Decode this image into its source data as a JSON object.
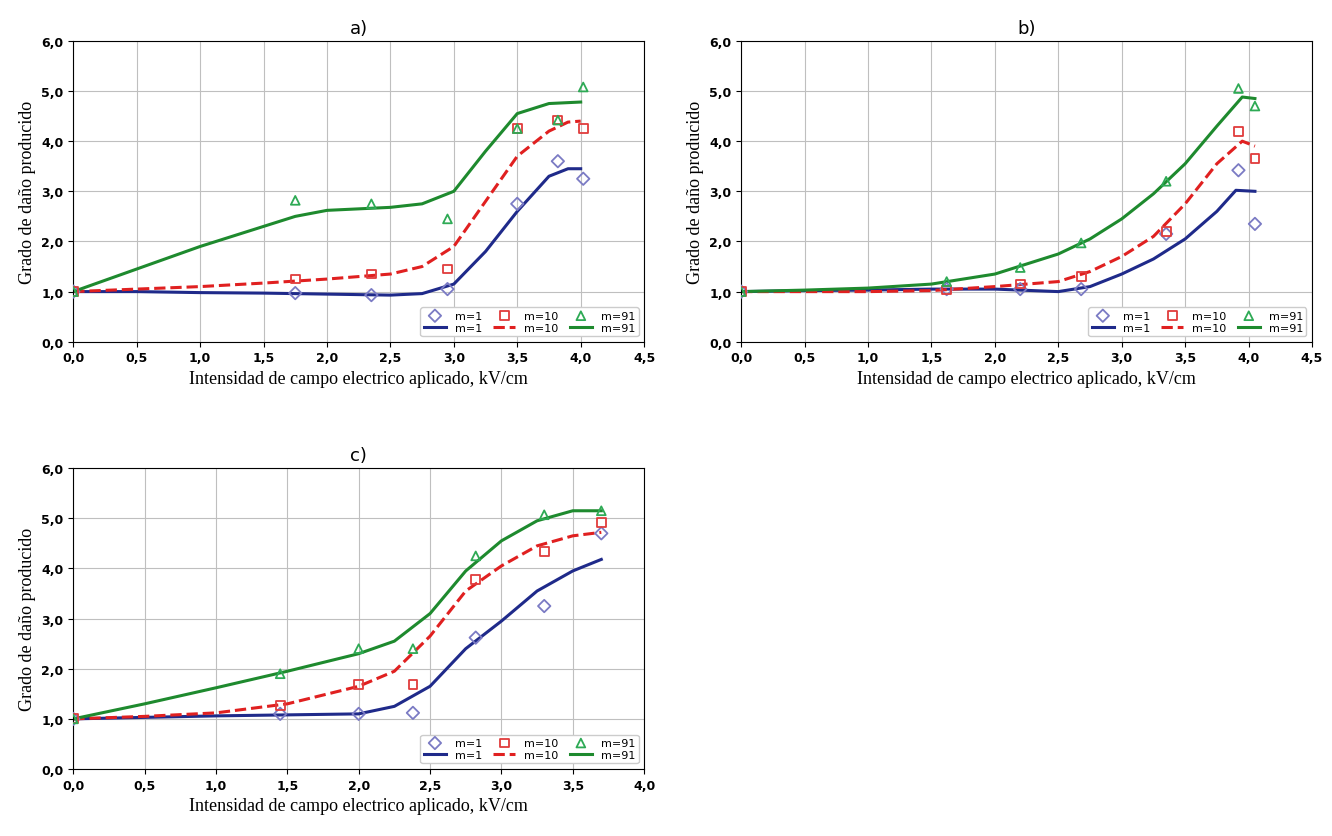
{
  "chart_data": [
    {
      "type": "line",
      "title": "a)",
      "x_label": "Intensidad de campo electrico aplicado, kV/cm",
      "y_label": "Grado de daño producido",
      "xlim": [
        0.0,
        4.5
      ],
      "xticks": [
        {
          "value": 0.0,
          "label": "0,0"
        },
        {
          "value": 0.5,
          "label": "0,5"
        },
        {
          "value": 1.0,
          "label": "1,0"
        },
        {
          "value": 1.5,
          "label": "1,5"
        },
        {
          "value": 2.0,
          "label": "2,0"
        },
        {
          "value": 2.5,
          "label": "2,5"
        },
        {
          "value": 3.0,
          "label": "3,0"
        },
        {
          "value": 3.5,
          "label": "3,5"
        },
        {
          "value": 4.0,
          "label": "4,0"
        },
        {
          "value": 4.5,
          "label": "4,5"
        }
      ],
      "ylim": [
        0.0,
        6.0
      ],
      "yticks": [
        {
          "value": 0.0,
          "label": "0,0"
        },
        {
          "value": 1.0,
          "label": "1,0"
        },
        {
          "value": 2.0,
          "label": "2,0"
        },
        {
          "value": 3.0,
          "label": "3,0"
        },
        {
          "value": 4.0,
          "label": "4,0"
        },
        {
          "value": 5.0,
          "label": "5,0"
        },
        {
          "value": 6.0,
          "label": "6,0"
        }
      ],
      "grid": true,
      "legend": "lower right",
      "series": [
        {
          "name": "m=1",
          "type": "scatter",
          "color": "#7b7bc4",
          "marker": "diamond",
          "x": [
            0.0,
            1.75,
            2.35,
            2.95,
            3.5,
            3.82,
            4.02
          ],
          "values": [
            1.0,
            0.97,
            0.93,
            1.05,
            2.75,
            3.6,
            3.25
          ]
        },
        {
          "name": "m=1",
          "type": "line",
          "color": "#1f2a8a",
          "line_style": "solid",
          "x": [
            0.0,
            0.5,
            1.0,
            1.5,
            2.0,
            2.5,
            2.75,
            3.0,
            3.25,
            3.5,
            3.75,
            3.9,
            4.0
          ],
          "values": [
            1.0,
            1.0,
            0.98,
            0.97,
            0.95,
            0.93,
            0.96,
            1.15,
            1.8,
            2.6,
            3.3,
            3.45,
            3.45
          ]
        },
        {
          "name": "m=10",
          "type": "scatter",
          "color": "#e03c3c",
          "marker": "square",
          "x": [
            0.0,
            1.75,
            2.35,
            2.95,
            3.5,
            3.82,
            4.02
          ],
          "values": [
            1.0,
            1.25,
            1.35,
            1.45,
            4.25,
            4.42,
            4.25
          ]
        },
        {
          "name": "m=10",
          "type": "line",
          "color": "#e02020",
          "line_style": "dashed",
          "x": [
            0.0,
            0.5,
            1.0,
            1.5,
            2.0,
            2.5,
            2.75,
            3.0,
            3.25,
            3.5,
            3.75,
            3.9,
            4.0
          ],
          "values": [
            1.0,
            1.05,
            1.1,
            1.17,
            1.25,
            1.35,
            1.5,
            1.9,
            2.8,
            3.7,
            4.2,
            4.38,
            4.4
          ]
        },
        {
          "name": "m=91",
          "type": "scatter",
          "color": "#2eaa55",
          "marker": "triangle",
          "x": [
            0.0,
            1.75,
            2.35,
            2.95,
            3.5,
            3.82,
            4.02
          ],
          "values": [
            1.0,
            2.82,
            2.75,
            2.45,
            4.25,
            4.42,
            5.08
          ]
        },
        {
          "name": "m=91",
          "type": "line",
          "color": "#1e8a2e",
          "line_style": "solid",
          "x": [
            0.0,
            0.5,
            1.0,
            1.5,
            1.75,
            2.0,
            2.25,
            2.5,
            2.75,
            3.0,
            3.25,
            3.5,
            3.75,
            4.0
          ],
          "values": [
            1.0,
            1.45,
            1.9,
            2.3,
            2.5,
            2.62,
            2.65,
            2.68,
            2.75,
            3.0,
            3.8,
            4.55,
            4.75,
            4.78
          ]
        }
      ]
    },
    {
      "type": "line",
      "title": "b)",
      "x_label": "Intensidad de campo electrico aplicado, kV/cm",
      "y_label": "Grado de daño producido",
      "xlim": [
        0.0,
        4.5
      ],
      "xticks": [
        {
          "value": 0.0,
          "label": "0,0"
        },
        {
          "value": 0.5,
          "label": "0,5"
        },
        {
          "value": 1.0,
          "label": "1,0"
        },
        {
          "value": 1.5,
          "label": "1,5"
        },
        {
          "value": 2.0,
          "label": "2,0"
        },
        {
          "value": 2.5,
          "label": "2,5"
        },
        {
          "value": 3.0,
          "label": "3,0"
        },
        {
          "value": 3.5,
          "label": "3,5"
        },
        {
          "value": 4.0,
          "label": "4,0"
        },
        {
          "value": 4.5,
          "label": "4,5"
        }
      ],
      "ylim": [
        0.0,
        6.0
      ],
      "yticks": [
        {
          "value": 0.0,
          "label": "0,0"
        },
        {
          "value": 1.0,
          "label": "1,0"
        },
        {
          "value": 2.0,
          "label": "2,0"
        },
        {
          "value": 3.0,
          "label": "3,0"
        },
        {
          "value": 4.0,
          "label": "4,0"
        },
        {
          "value": 5.0,
          "label": "5,0"
        },
        {
          "value": 6.0,
          "label": "6,0"
        }
      ],
      "grid": true,
      "legend": "lower right",
      "series": [
        {
          "name": "m=1",
          "type": "scatter",
          "color": "#7b7bc4",
          "marker": "diamond",
          "x": [
            0.0,
            1.62,
            2.2,
            2.68,
            3.35,
            3.92,
            4.05
          ],
          "values": [
            1.0,
            1.05,
            1.05,
            1.05,
            2.15,
            3.42,
            2.35
          ]
        },
        {
          "name": "m=1",
          "type": "line",
          "color": "#1f2a8a",
          "line_style": "solid",
          "x": [
            0.0,
            0.5,
            1.0,
            1.5,
            2.0,
            2.5,
            2.75,
            3.0,
            3.25,
            3.5,
            3.75,
            3.9,
            4.05
          ],
          "values": [
            1.0,
            1.02,
            1.03,
            1.05,
            1.05,
            1.0,
            1.1,
            1.35,
            1.65,
            2.05,
            2.6,
            3.02,
            3.0
          ]
        },
        {
          "name": "m=10",
          "type": "scatter",
          "color": "#e03c3c",
          "marker": "square",
          "x": [
            0.0,
            1.62,
            2.2,
            2.68,
            3.35,
            3.92,
            4.05
          ],
          "values": [
            1.0,
            1.03,
            1.15,
            1.3,
            2.2,
            4.2,
            3.65
          ]
        },
        {
          "name": "m=10",
          "type": "line",
          "color": "#e02020",
          "line_style": "dashed",
          "x": [
            0.0,
            0.5,
            1.0,
            1.5,
            2.0,
            2.5,
            2.75,
            3.0,
            3.25,
            3.5,
            3.75,
            3.95,
            4.05
          ],
          "values": [
            1.0,
            1.0,
            1.0,
            1.02,
            1.1,
            1.2,
            1.4,
            1.7,
            2.1,
            2.75,
            3.55,
            4.0,
            3.9
          ]
        },
        {
          "name": "m=91",
          "type": "scatter",
          "color": "#2eaa55",
          "marker": "triangle",
          "x": [
            0.0,
            1.62,
            2.2,
            2.68,
            3.35,
            3.92,
            4.05
          ],
          "values": [
            1.0,
            1.2,
            1.48,
            1.97,
            3.2,
            5.05,
            4.7
          ]
        },
        {
          "name": "m=91",
          "type": "line",
          "color": "#1e8a2e",
          "line_style": "solid",
          "x": [
            0.0,
            0.5,
            1.0,
            1.5,
            2.0,
            2.5,
            2.75,
            3.0,
            3.25,
            3.5,
            3.75,
            3.95,
            4.05
          ],
          "values": [
            1.0,
            1.03,
            1.07,
            1.15,
            1.35,
            1.75,
            2.05,
            2.45,
            2.95,
            3.55,
            4.3,
            4.88,
            4.85
          ]
        }
      ]
    },
    {
      "type": "line",
      "title": "c)",
      "x_label": "Intensidad de campo electrico aplicado, kV/cm",
      "y_label": "Grado de daño producido",
      "xlim": [
        0.0,
        4.0
      ],
      "xticks": [
        {
          "value": 0.0,
          "label": "0,0"
        },
        {
          "value": 0.5,
          "label": "0,5"
        },
        {
          "value": 1.0,
          "label": "1,0"
        },
        {
          "value": 1.5,
          "label": "1,5"
        },
        {
          "value": 2.0,
          "label": "2,0"
        },
        {
          "value": 2.5,
          "label": "2,5"
        },
        {
          "value": 3.0,
          "label": "3,0"
        },
        {
          "value": 3.5,
          "label": "3,5"
        },
        {
          "value": 4.0,
          "label": "4,0"
        }
      ],
      "ylim": [
        0.0,
        6.0
      ],
      "yticks": [
        {
          "value": 0.0,
          "label": "0,0"
        },
        {
          "value": 1.0,
          "label": "1,0"
        },
        {
          "value": 2.0,
          "label": "2,0"
        },
        {
          "value": 3.0,
          "label": "3,0"
        },
        {
          "value": 4.0,
          "label": "4,0"
        },
        {
          "value": 5.0,
          "label": "5,0"
        },
        {
          "value": 6.0,
          "label": "6,0"
        }
      ],
      "grid": true,
      "legend": "lower right",
      "series": [
        {
          "name": "m=1",
          "type": "scatter",
          "color": "#7b7bc4",
          "marker": "diamond",
          "x": [
            0.0,
            1.45,
            2.0,
            2.38,
            2.82,
            3.3,
            3.7
          ],
          "values": [
            1.0,
            1.1,
            1.1,
            1.12,
            2.62,
            3.25,
            4.7
          ]
        },
        {
          "name": "m=1",
          "type": "line",
          "color": "#1f2a8a",
          "line_style": "solid",
          "x": [
            0.0,
            0.5,
            1.0,
            1.5,
            2.0,
            2.25,
            2.5,
            2.75,
            3.0,
            3.25,
            3.5,
            3.7
          ],
          "values": [
            1.0,
            1.03,
            1.06,
            1.08,
            1.1,
            1.25,
            1.65,
            2.4,
            2.95,
            3.55,
            3.95,
            4.18
          ]
        },
        {
          "name": "m=10",
          "type": "scatter",
          "color": "#e03c3c",
          "marker": "square",
          "x": [
            0.0,
            1.45,
            2.0,
            2.38,
            2.82,
            3.3,
            3.7
          ],
          "values": [
            1.0,
            1.27,
            1.68,
            1.68,
            3.78,
            4.33,
            4.92
          ]
        },
        {
          "name": "m=10",
          "type": "line",
          "color": "#e02020",
          "line_style": "dashed",
          "x": [
            0.0,
            0.5,
            1.0,
            1.5,
            2.0,
            2.25,
            2.5,
            2.75,
            3.0,
            3.25,
            3.5,
            3.7
          ],
          "values": [
            1.0,
            1.05,
            1.12,
            1.3,
            1.65,
            1.95,
            2.65,
            3.55,
            4.05,
            4.45,
            4.65,
            4.72
          ]
        },
        {
          "name": "m=91",
          "type": "scatter",
          "color": "#2eaa55",
          "marker": "triangle",
          "x": [
            0.0,
            1.45,
            2.0,
            2.38,
            2.82,
            3.3,
            3.7
          ],
          "values": [
            1.0,
            1.9,
            2.4,
            2.4,
            4.25,
            5.07,
            5.15
          ]
        },
        {
          "name": "m=91",
          "type": "line",
          "color": "#1e8a2e",
          "line_style": "solid",
          "x": [
            0.0,
            0.5,
            1.0,
            1.5,
            2.0,
            2.25,
            2.5,
            2.75,
            3.0,
            3.25,
            3.5,
            3.7
          ],
          "values": [
            1.0,
            1.3,
            1.62,
            1.95,
            2.3,
            2.55,
            3.1,
            3.95,
            4.55,
            4.95,
            5.15,
            5.15
          ]
        }
      ]
    }
  ]
}
